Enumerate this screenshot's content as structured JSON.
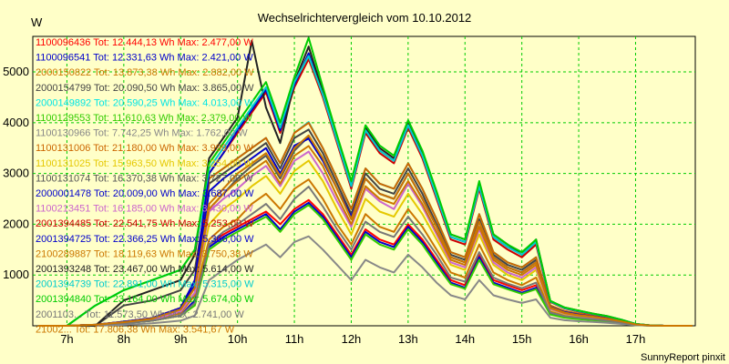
{
  "chart_data": {
    "type": "line",
    "title": "Wechselrichtervergleich vom 10.10.2012",
    "ylabel": "W",
    "xlabel": "",
    "footer": "SunnyReport pinxit",
    "ylim": [
      0,
      5700
    ],
    "xlim": [
      6.4,
      18.05
    ],
    "yticks": [
      1000,
      2000,
      3000,
      4000,
      5000
    ],
    "ytick_labels": [
      "1000",
      "2000",
      "3000",
      "4000",
      "5000"
    ],
    "xticks": [
      7,
      8,
      9,
      10,
      11,
      12,
      13,
      14,
      15,
      16,
      17
    ],
    "xtick_labels": [
      "7h",
      "8h",
      "9h",
      "10h",
      "11h",
      "12h",
      "13h",
      "14h",
      "15h",
      "16h",
      "17h"
    ],
    "grid": true,
    "x": [
      6.5,
      7,
      7.5,
      8,
      8.5,
      9,
      9.25,
      9.5,
      9.75,
      10,
      10.25,
      10.5,
      10.75,
      11,
      11.25,
      11.5,
      11.75,
      12,
      12.25,
      12.5,
      12.75,
      13,
      13.25,
      13.5,
      13.75,
      14,
      14.25,
      14.5,
      14.75,
      15,
      15.25,
      15.5,
      15.75,
      16,
      16.25,
      16.5,
      16.75,
      17,
      17.25,
      17.5,
      17.75,
      18
    ],
    "series": [
      {
        "name": "1100096436",
        "legend": "1100096436 Tot: 12.444,13 Wh Max: 2.477,00 W",
        "color": "#ff0000",
        "values": [
          0,
          0,
          20,
          50,
          100,
          200,
          500,
          1600,
          1800,
          1950,
          2100,
          2250,
          2000,
          2300,
          2477,
          2200,
          1800,
          1400,
          1900,
          1700,
          1600,
          2000,
          1700,
          1300,
          900,
          800,
          1400,
          900,
          800,
          700,
          800,
          250,
          180,
          150,
          130,
          100,
          60,
          20,
          5,
          0,
          0,
          0
        ]
      },
      {
        "name": "1100096541",
        "legend": "1100096541 Tot: 12.331,63 Wh Max: 2.421,00 W",
        "color": "#0000cc",
        "values": [
          0,
          0,
          20,
          50,
          100,
          200,
          500,
          1550,
          1750,
          1900,
          2050,
          2200,
          1900,
          2250,
          2421,
          2150,
          1750,
          1350,
          1850,
          1650,
          1550,
          1950,
          1650,
          1250,
          850,
          750,
          1350,
          850,
          750,
          650,
          750,
          230,
          170,
          140,
          120,
          90,
          55,
          15,
          5,
          0,
          0,
          0
        ]
      },
      {
        "name": "2000150822",
        "legend": "2000150822 Tot: 13.873,38 Wh Max: 2.882,00 W",
        "color": "#cc7700",
        "values": [
          0,
          0,
          20,
          60,
          120,
          250,
          600,
          1700,
          1950,
          2100,
          2400,
          2600,
          2300,
          2700,
          2882,
          2500,
          2000,
          1600,
          2200,
          1950,
          1850,
          2300,
          1950,
          1500,
          1050,
          950,
          1600,
          1050,
          900,
          800,
          950,
          280,
          200,
          170,
          140,
          110,
          70,
          20,
          5,
          0,
          0,
          0
        ]
      },
      {
        "name": "2000154799",
        "legend": "2000154799 Tot: 20.090,50 Wh Max: 3.865,00 W",
        "color": "#444444",
        "values": [
          0,
          0,
          0,
          400,
          500,
          700,
          1100,
          2800,
          3000,
          3200,
          3400,
          3600,
          3100,
          3700,
          3865,
          3400,
          2800,
          2200,
          3000,
          2700,
          2600,
          3100,
          2600,
          2000,
          1400,
          1300,
          2100,
          1400,
          1200,
          1100,
          1300,
          380,
          280,
          230,
          190,
          150,
          95,
          30,
          8,
          0,
          0,
          0
        ]
      },
      {
        "name": "2000149892",
        "legend": "2000149892 Tot: 20.590,25 Wh Max: 4.013,00 W",
        "color": "#00e5e5",
        "values": [
          0,
          0,
          400,
          700,
          900,
          1100,
          1500,
          2900,
          3100,
          3300,
          3500,
          3700,
          3200,
          3800,
          4013,
          3500,
          2900,
          2300,
          3100,
          2800,
          2700,
          3200,
          2700,
          2100,
          1450,
          1350,
          2200,
          1450,
          1250,
          1150,
          1350,
          400,
          290,
          240,
          200,
          160,
          100,
          30,
          8,
          0,
          0,
          0
        ]
      },
      {
        "name": "1100129553",
        "legend": "1100129553 Tot: 11.610,63 Wh Max: 2.379,00 W",
        "color": "#33cc00",
        "values": [
          0,
          0,
          20,
          50,
          100,
          200,
          400,
          1500,
          1700,
          1850,
          2000,
          2150,
          1850,
          2200,
          2379,
          2100,
          1700,
          1300,
          1800,
          1600,
          1500,
          1900,
          1600,
          1200,
          820,
          730,
          1300,
          820,
          720,
          630,
          720,
          220,
          160,
          130,
          110,
          85,
          50,
          15,
          5,
          0,
          0,
          0
        ]
      },
      {
        "name": "1100130966",
        "legend": "1100130966 Tot: 7.742,25 Wh Max: 1.762,00 W",
        "color": "#888888",
        "values": [
          0,
          0,
          0,
          20,
          50,
          100,
          200,
          900,
          1100,
          1300,
          1450,
          1600,
          1350,
          1650,
          1762,
          1500,
          1200,
          900,
          1300,
          1150,
          1050,
          1400,
          1150,
          850,
          600,
          520,
          900,
          600,
          520,
          450,
          520,
          160,
          110,
          90,
          75,
          60,
          35,
          10,
          3,
          0,
          0,
          0
        ]
      },
      {
        "name": "1100131006",
        "legend": "1100131006 Tot: 21.180,00 Wh Max: 3.999,00 W",
        "color": "#cc6600",
        "values": [
          0,
          0,
          20,
          80,
          150,
          350,
          800,
          2900,
          3100,
          3300,
          3500,
          3700,
          3200,
          3800,
          3999,
          3500,
          2900,
          2300,
          3100,
          2800,
          2700,
          3200,
          2700,
          2100,
          1450,
          1350,
          2200,
          1450,
          1250,
          1150,
          1350,
          400,
          290,
          240,
          200,
          160,
          100,
          30,
          8,
          0,
          0,
          0
        ]
      },
      {
        "name": "1100131025",
        "legend": "1100131025 Tot: 15.963,50 Wh Max: 3.254,00 W",
        "color": "#e5c800",
        "values": [
          0,
          0,
          20,
          60,
          120,
          280,
          650,
          2000,
          2300,
          2500,
          2750,
          2950,
          2600,
          3050,
          3254,
          2850,
          2300,
          1800,
          2500,
          2250,
          2150,
          2600,
          2200,
          1700,
          1200,
          1100,
          1800,
          1200,
          1000,
          900,
          1100,
          320,
          230,
          190,
          160,
          125,
          80,
          25,
          6,
          0,
          0,
          0
        ]
      },
      {
        "name": "1100131074",
        "legend": "1100131074 Tot: 16.370,38 Wh Max: 3.727,00 W",
        "color": "#555555",
        "values": [
          0,
          0,
          20,
          60,
          120,
          280,
          650,
          2300,
          2600,
          2900,
          3150,
          3350,
          2900,
          3450,
          3727,
          3300,
          2700,
          2100,
          2900,
          2600,
          2500,
          3000,
          2500,
          1950,
          1350,
          1250,
          2050,
          1350,
          1150,
          1050,
          1250,
          360,
          260,
          210,
          180,
          140,
          90,
          28,
          7,
          0,
          0,
          0
        ]
      },
      {
        "name": "2000001478",
        "legend": "2000001478 Tot: 20.009,00 Wh Max: 3.687,00 W",
        "color": "#0000cc",
        "values": [
          0,
          0,
          20,
          80,
          150,
          350,
          800,
          2650,
          2900,
          3100,
          3300,
          3500,
          3000,
          3550,
          3687,
          3250,
          2700,
          2150,
          2900,
          2600,
          2500,
          3000,
          2500,
          1950,
          1350,
          1250,
          2050,
          1350,
          1150,
          1050,
          1250,
          370,
          270,
          220,
          185,
          145,
          92,
          28,
          7,
          0,
          0,
          0
        ]
      },
      {
        "name": "1100213451",
        "legend": "1100213451 Tot: 16.185,00 Wh Max: 3.430,00 W",
        "color": "#cc66cc",
        "values": [
          0,
          0,
          20,
          60,
          120,
          280,
          650,
          2250,
          2500,
          2700,
          2950,
          3150,
          2750,
          3250,
          3430,
          3000,
          2450,
          1950,
          2700,
          2450,
          2300,
          2800,
          2350,
          1800,
          1250,
          1150,
          1900,
          1250,
          1050,
          950,
          1150,
          330,
          240,
          200,
          165,
          130,
          85,
          25,
          6,
          0,
          0,
          0
        ]
      },
      {
        "name": "2001394485",
        "legend": "2001394485 Tot: 22.541,75 Wh Max: 5.253,00 W",
        "color": "#cc0000",
        "values": [
          0,
          0,
          20,
          80,
          150,
          350,
          900,
          3000,
          3400,
          3800,
          4200,
          4600,
          3800,
          4700,
          5253,
          4500,
          3600,
          2700,
          3800,
          3400,
          3200,
          3900,
          3300,
          2500,
          1700,
          1600,
          2700,
          1700,
          1500,
          1350,
          1600,
          470,
          340,
          280,
          230,
          180,
          115,
          35,
          9,
          0,
          0,
          0
        ]
      },
      {
        "name": "2001394725",
        "legend": "2001394725 Tot: 22.366,25 Wh Max: 5.366,00 W",
        "color": "#0000cc",
        "values": [
          0,
          0,
          20,
          80,
          150,
          350,
          900,
          3000,
          3400,
          3850,
          4250,
          4650,
          3850,
          4750,
          5366,
          4550,
          3650,
          2750,
          3850,
          3450,
          3250,
          3950,
          3350,
          2550,
          1750,
          1650,
          2750,
          1750,
          1550,
          1400,
          1650,
          480,
          350,
          290,
          235,
          185,
          120,
          36,
          9,
          0,
          0,
          0
        ]
      },
      {
        "name": "2100289887",
        "legend": "2100289887 Tot: 18.119,63 Wh Max: 3.750,38 W",
        "color": "#cc7700",
        "values": [
          0,
          0,
          20,
          70,
          140,
          320,
          750,
          2400,
          2700,
          3000,
          3200,
          3400,
          2950,
          3500,
          3750,
          3300,
          2700,
          2100,
          2900,
          2600,
          2500,
          3000,
          2500,
          1950,
          1350,
          1250,
          2050,
          1350,
          1150,
          1050,
          1250,
          360,
          260,
          210,
          180,
          140,
          90,
          28,
          7,
          0,
          0,
          0
        ]
      },
      {
        "name": "2001393248",
        "legend": "2001393248 Tot: 23.467,00 Wh Max: 5.614,00 W",
        "color": "#222222",
        "values": [
          0,
          0,
          0,
          500,
          700,
          900,
          1400,
          3300,
          3700,
          4100,
          5614,
          4300,
          3600,
          4800,
          5500,
          4600,
          3700,
          2800,
          3900,
          3500,
          3300,
          4000,
          3400,
          2600,
          1800,
          1700,
          2800,
          1800,
          1600,
          1400,
          1700,
          490,
          360,
          300,
          240,
          190,
          120,
          36,
          9,
          0,
          0,
          0
        ]
      },
      {
        "name": "2001394739",
        "legend": "2001394739 Tot: 22.891,00 Wh Max: 5.315,00 W",
        "color": "#00cccc",
        "values": [
          0,
          0,
          400,
          700,
          900,
          1100,
          1500,
          3100,
          3500,
          3900,
          4300,
          4700,
          3900,
          4800,
          5315,
          4550,
          3650,
          2750,
          3850,
          3450,
          3250,
          3950,
          3350,
          2550,
          1750,
          1650,
          2750,
          1750,
          1550,
          1400,
          1650,
          480,
          350,
          290,
          235,
          185,
          120,
          36,
          9,
          0,
          0,
          0
        ]
      },
      {
        "name": "2001394840",
        "legend": "2001394840 Tot: 23.164,00 Wh Max: 5.674,00 W",
        "color": "#00cc00",
        "values": [
          0,
          0,
          400,
          700,
          900,
          1100,
          1500,
          3200,
          3600,
          4000,
          4400,
          4800,
          4000,
          4900,
          5674,
          4700,
          3750,
          2850,
          3950,
          3550,
          3350,
          4050,
          3450,
          2650,
          1800,
          1700,
          2850,
          1800,
          1600,
          1450,
          1700,
          490,
          360,
          300,
          240,
          190,
          120,
          36,
          9,
          0,
          0,
          0
        ]
      },
      {
        "name": "2001103...",
        "legend": "2001103... Tot: 11.573,50 Wh Max: 2.741,00 W",
        "color": "#777777",
        "values": [
          0,
          0,
          20,
          50,
          100,
          200,
          450,
          1600,
          1850,
          2000,
          2200,
          2400,
          2100,
          2500,
          2741,
          2350,
          1900,
          1500,
          2050,
          1850,
          1750,
          2150,
          1800,
          1400,
          950,
          870,
          1450,
          950,
          830,
          740,
          850,
          260,
          190,
          160,
          130,
          100,
          65,
          20,
          5,
          0,
          0,
          0
        ]
      },
      {
        "name": "21002...",
        "legend": "21002... Tot: 17.806,38 Wh Max: 3.541,67 W",
        "color": "#cc7700",
        "values": [
          0,
          0,
          20,
          70,
          140,
          320,
          750,
          2300,
          2600,
          2850,
          3050,
          3250,
          2800,
          3350,
          3541,
          3150,
          2550,
          2000,
          2750,
          2500,
          2400,
          2850,
          2400,
          1850,
          1300,
          1200,
          1950,
          1300,
          1100,
          1000,
          1200,
          350,
          250,
          205,
          175,
          135,
          88,
          27,
          7,
          0,
          0,
          0
        ]
      }
    ]
  }
}
